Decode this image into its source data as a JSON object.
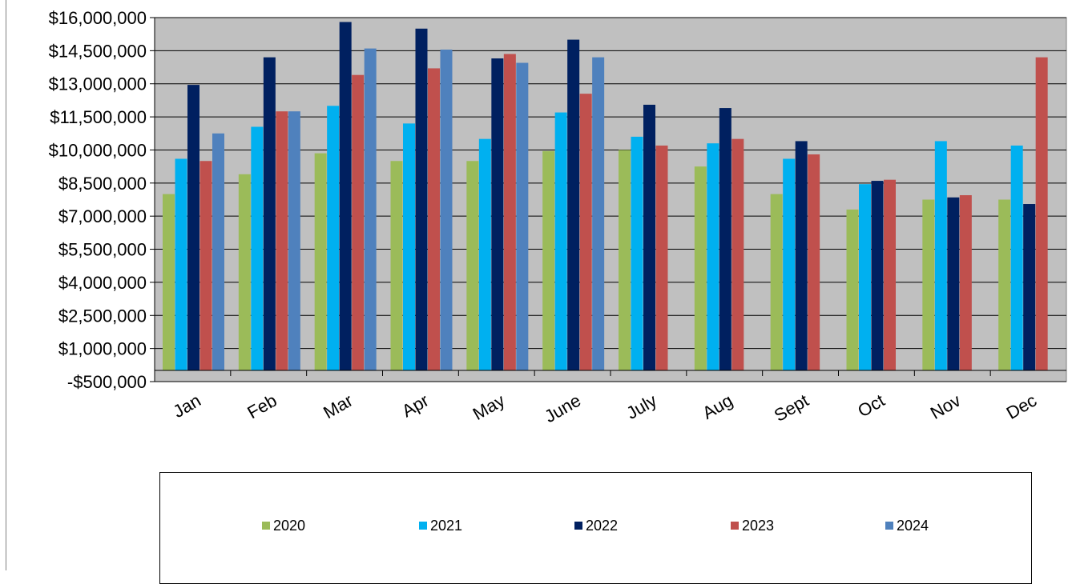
{
  "chart_data": {
    "type": "bar",
    "title": "",
    "xlabel": "",
    "ylabel": "",
    "categories": [
      "Jan",
      "Feb",
      "Mar",
      "Apr",
      "May",
      "June",
      "July",
      "Aug",
      "Sept",
      "Oct",
      "Nov",
      "Dec"
    ],
    "ylim": [
      -500000,
      16000000
    ],
    "yticks": [
      -500000,
      1000000,
      2500000,
      4000000,
      5500000,
      7000000,
      8500000,
      10000000,
      11500000,
      13000000,
      14500000,
      16000000
    ],
    "ytick_labels": [
      "-$500,000",
      "$1,000,000",
      "$2,500,000",
      "$4,000,000",
      "$5,500,000",
      "$7,000,000",
      "$8,500,000",
      "$10,000,000",
      "$11,500,000",
      "$13,000,000",
      "$14,500,000",
      "$16,000,000"
    ],
    "grid": true,
    "plot_background": "#c0c0c0",
    "legend_position": "bottom",
    "series": [
      {
        "name": "2020",
        "color": "#9bbb59",
        "values": [
          8000000,
          8900000,
          9850000,
          9500000,
          9500000,
          9950000,
          10000000,
          9250000,
          8000000,
          7300000,
          7750000,
          7750000
        ]
      },
      {
        "name": "2021",
        "color": "#00b0f0",
        "values": [
          9600000,
          11050000,
          12000000,
          11200000,
          10500000,
          11700000,
          10600000,
          10300000,
          9600000,
          8450000,
          10400000,
          10200000
        ]
      },
      {
        "name": "2022",
        "color": "#002060",
        "values": [
          12950000,
          14200000,
          15800000,
          15500000,
          14150000,
          15000000,
          12050000,
          11900000,
          10400000,
          8600000,
          7850000,
          7550000
        ]
      },
      {
        "name": "2023",
        "color": "#c0504d",
        "values": [
          9500000,
          11750000,
          13400000,
          13700000,
          14350000,
          12550000,
          10200000,
          10500000,
          9800000,
          8650000,
          7950000,
          14200000
        ]
      },
      {
        "name": "2024",
        "color": "#4f81bd",
        "values": [
          10750000,
          11750000,
          14600000,
          14550000,
          13950000,
          14200000,
          null,
          null,
          null,
          null,
          null,
          null
        ]
      }
    ]
  }
}
